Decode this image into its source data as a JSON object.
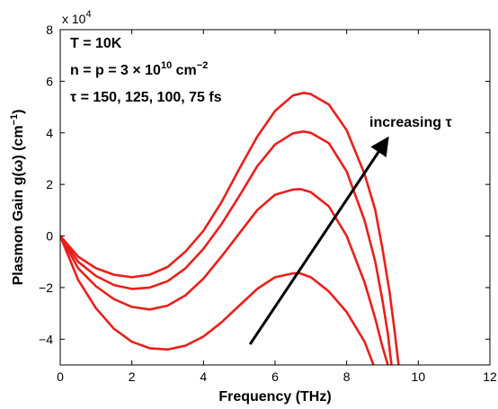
{
  "chart_data": {
    "type": "line",
    "title": "",
    "xlabel": "Frequency (THz)",
    "ylabel": {
      "main": "Plasmon Gain g(ω) (cm",
      "sup": "−1",
      "close": ")"
    },
    "xlim": [
      0,
      12
    ],
    "ylim": [
      -50000,
      80000
    ],
    "x_ticks": [
      0,
      2,
      4,
      6,
      8,
      10,
      12
    ],
    "y_ticks": [
      -40000,
      -20000,
      0,
      20000,
      40000,
      60000,
      80000
    ],
    "y_tick_labels": [
      "−4",
      "−2",
      "0",
      "2",
      "4",
      "6",
      "8"
    ],
    "y_exponent": {
      "base": "x 10",
      "power": "4"
    },
    "grid": false,
    "line_color": "#e8201c",
    "annotations": {
      "line1": "T = 10K",
      "line2": {
        "pre": "n = p = 3 × 10",
        "sup1": "10",
        "mid": " cm",
        "sup2": "−2"
      },
      "line3": "τ = 150, 125, 100, 75 fs",
      "arrow_label": "increasing τ",
      "arrow": {
        "from": [
          5.3,
          -42000
        ],
        "to": [
          9.15,
          38000
        ]
      }
    },
    "series": [
      {
        "x": [
          0,
          0.5,
          1.0,
          1.5,
          2.0,
          2.5,
          3.0,
          3.5,
          4.0,
          4.5,
          5.0,
          5.5,
          6.0,
          6.5,
          6.8,
          7.0,
          7.5,
          8.0,
          8.5,
          8.8,
          9.0,
          9.2,
          9.35,
          9.45
        ],
        "y": [
          0,
          -8000,
          -12500,
          -15000,
          -16000,
          -15000,
          -12000,
          -6000,
          2000,
          13000,
          26000,
          38500,
          48500,
          54500,
          55500,
          55000,
          51000,
          41000,
          24000,
          10000,
          -5000,
          -22000,
          -38000,
          -50000
        ]
      },
      {
        "x": [
          0,
          0.5,
          1.0,
          1.5,
          2.0,
          2.5,
          3.0,
          3.5,
          4.0,
          4.5,
          5.0,
          5.5,
          6.0,
          6.5,
          6.8,
          7.0,
          7.5,
          8.0,
          8.5,
          8.8,
          9.0,
          9.15,
          9.25
        ],
        "y": [
          0,
          -10000,
          -15500,
          -19000,
          -20500,
          -20000,
          -17500,
          -12500,
          -5000,
          4500,
          15500,
          27000,
          35500,
          39800,
          40500,
          40000,
          36000,
          25000,
          6000,
          -10000,
          -25000,
          -38000,
          -50000
        ]
      },
      {
        "x": [
          0,
          0.5,
          1.0,
          1.5,
          2.0,
          2.5,
          3.0,
          3.5,
          4.0,
          4.5,
          5.0,
          5.5,
          6.0,
          6.5,
          6.7,
          7.0,
          7.5,
          8.0,
          8.5,
          8.8,
          9.0,
          9.15
        ],
        "y": [
          0,
          -12500,
          -19500,
          -24500,
          -27500,
          -28500,
          -27000,
          -23000,
          -16500,
          -8000,
          1000,
          10000,
          16000,
          18000,
          18200,
          17000,
          11500,
          0,
          -18000,
          -32000,
          -43000,
          -50000
        ]
      },
      {
        "x": [
          0,
          0.5,
          1.0,
          1.5,
          2.0,
          2.5,
          3.0,
          3.5,
          4.0,
          4.5,
          5.0,
          5.5,
          6.0,
          6.5,
          6.7,
          7.0,
          7.5,
          8.0,
          8.5,
          8.75
        ],
        "y": [
          0,
          -17000,
          -28000,
          -36000,
          -41000,
          -43500,
          -44000,
          -42500,
          -39000,
          -33500,
          -27000,
          -20500,
          -16000,
          -14500,
          -14500,
          -16000,
          -21500,
          -29500,
          -41000,
          -50000
        ]
      }
    ]
  }
}
